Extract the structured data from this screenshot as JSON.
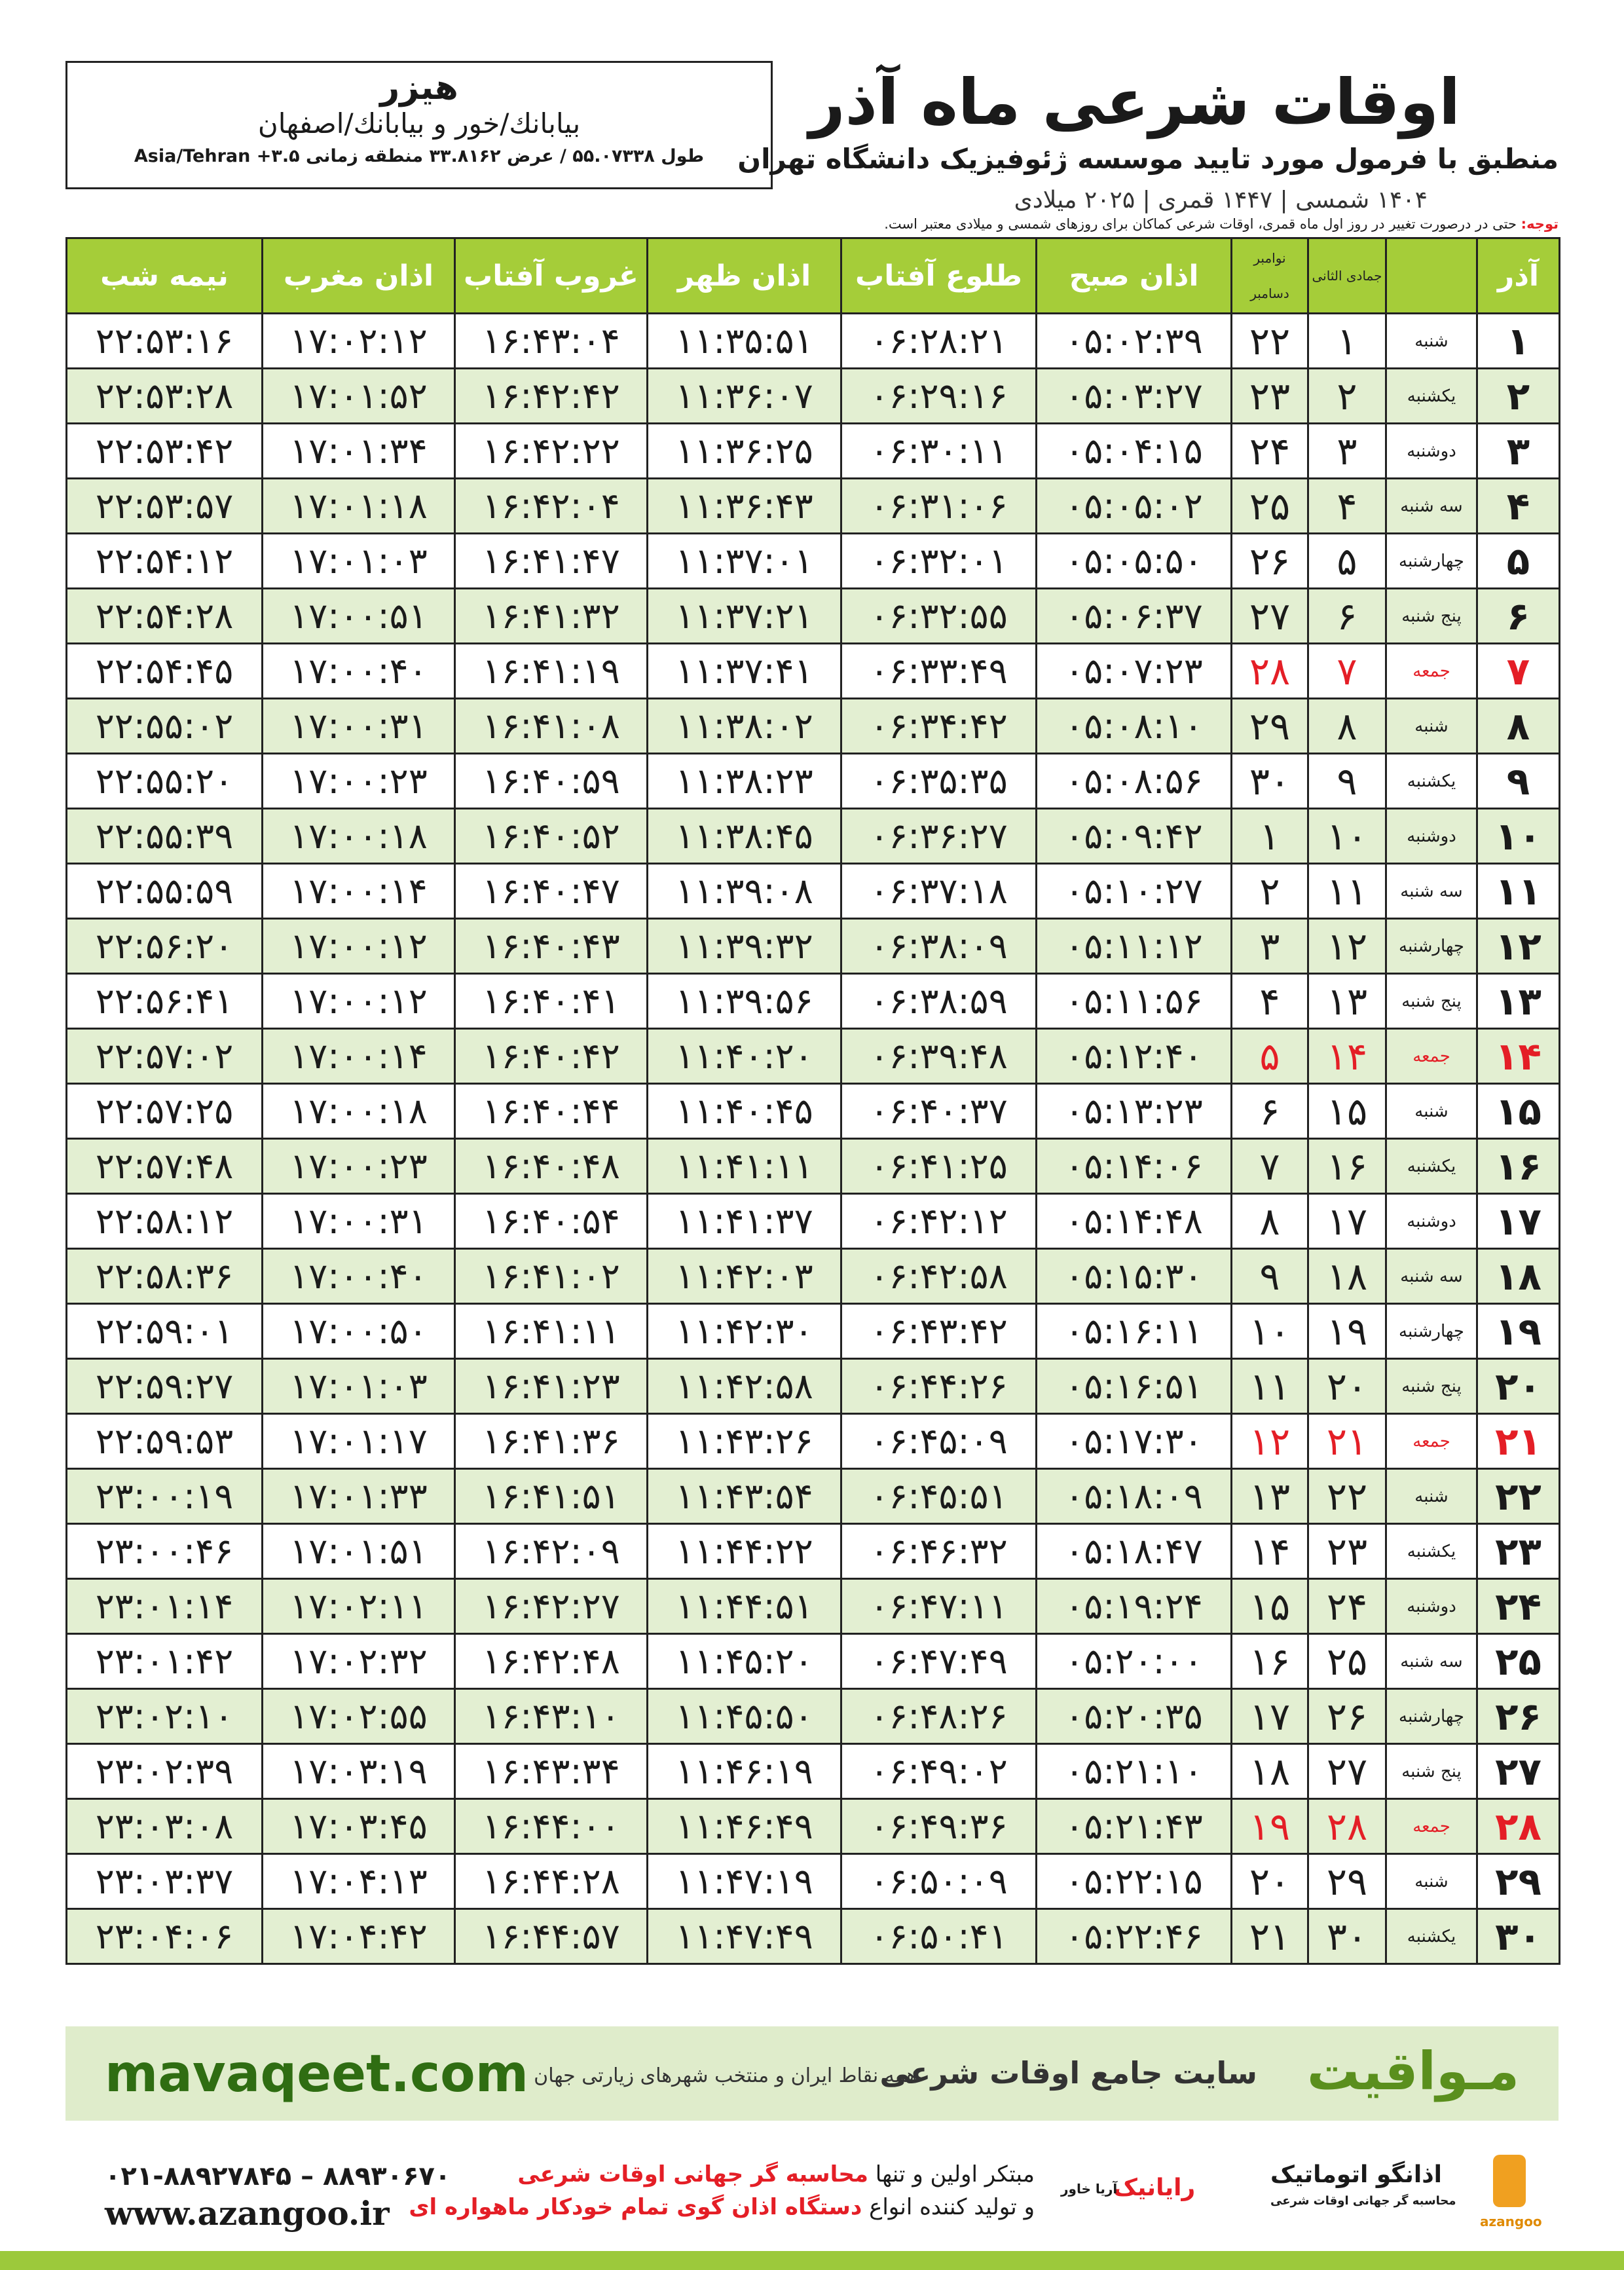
{
  "header": {
    "title": "اوقات شرعی ماه آذر",
    "subtitle": "منطبق با فرمول مورد تایید موسسه ژئوفیزیک دانشگاه تهران",
    "dates": "۱۴۰۴ شمسی | ۱۴۴۷ قمری | ۲۰۲۵ میلادی"
  },
  "city": {
    "name": "هیزر",
    "path": "بیابانك/خور و بیابانك/اصفهان",
    "coords": "طول ۵۵.۰۷۳۳۸ / عرض ۳۳.۸۱۶۲ منطقه زمانی ۳.۵+ Asia/Tehran"
  },
  "note": {
    "label": "توجه:",
    "text": "حتی در درصورت تغییر در روز اول ماه قمری، اوقات شرعی کماکان برای روزهای شمسی و میلادی معتبر است."
  },
  "table": {
    "header": {
      "azar": "آذر",
      "hijri": "جمادی الثانی",
      "greg_top": "نوامبر",
      "greg_bottom": "دسامبر",
      "columns": [
        "اذان صبح",
        "طلوع آفتاب",
        "اذان ظهر",
        "غروب آفتاب",
        "اذان مغرب",
        "نیمه شب"
      ]
    },
    "rows": [
      {
        "cells": [
          "۱",
          "شنبه",
          "۱",
          "۲۲",
          "۰۵:۰۲:۳۹",
          "۰۶:۲۸:۲۱",
          "۱۱:۳۵:۵۱",
          "۱۶:۴۳:۰۴",
          "۱۷:۰۲:۱۲",
          "۲۲:۵۳:۱۶"
        ]
      },
      {
        "cells": [
          "۲",
          "یکشنبه",
          "۲",
          "۲۳",
          "۰۵:۰۳:۲۷",
          "۰۶:۲۹:۱۶",
          "۱۱:۳۶:۰۷",
          "۱۶:۴۲:۴۲",
          "۱۷:۰۱:۵۲",
          "۲۲:۵۳:۲۸"
        ]
      },
      {
        "cells": [
          "۳",
          "دوشنبه",
          "۳",
          "۲۴",
          "۰۵:۰۴:۱۵",
          "۰۶:۳۰:۱۱",
          "۱۱:۳۶:۲۵",
          "۱۶:۴۲:۲۲",
          "۱۷:۰۱:۳۴",
          "۲۲:۵۳:۴۲"
        ]
      },
      {
        "cells": [
          "۴",
          "سه شنبه",
          "۴",
          "۲۵",
          "۰۵:۰۵:۰۲",
          "۰۶:۳۱:۰۶",
          "۱۱:۳۶:۴۳",
          "۱۶:۴۲:۰۴",
          "۱۷:۰۱:۱۸",
          "۲۲:۵۳:۵۷"
        ]
      },
      {
        "cells": [
          "۵",
          "چهارشنبه",
          "۵",
          "۲۶",
          "۰۵:۰۵:۵۰",
          "۰۶:۳۲:۰۱",
          "۱۱:۳۷:۰۱",
          "۱۶:۴۱:۴۷",
          "۱۷:۰۱:۰۳",
          "۲۲:۵۴:۱۲"
        ]
      },
      {
        "cells": [
          "۶",
          "پنج شنبه",
          "۶",
          "۲۷",
          "۰۵:۰۶:۳۷",
          "۰۶:۳۲:۵۵",
          "۱۱:۳۷:۲۱",
          "۱۶:۴۱:۳۲",
          "۱۷:۰۰:۵۱",
          "۲۲:۵۴:۲۸"
        ]
      },
      {
        "cells": [
          "۷",
          "جمعه",
          "۷",
          "۲۸",
          "۰۵:۰۷:۲۳",
          "۰۶:۳۳:۴۹",
          "۱۱:۳۷:۴۱",
          "۱۶:۴۱:۱۹",
          "۱۷:۰۰:۴۰",
          "۲۲:۵۴:۴۵"
        ],
        "color": "#e41e26"
      },
      {
        "cells": [
          "۸",
          "شنبه",
          "۸",
          "۲۹",
          "۰۵:۰۸:۱۰",
          "۰۶:۳۴:۴۲",
          "۱۱:۳۸:۰۲",
          "۱۶:۴۱:۰۸",
          "۱۷:۰۰:۳۱",
          "۲۲:۵۵:۰۲"
        ]
      },
      {
        "cells": [
          "۹",
          "یکشنبه",
          "۹",
          "۳۰",
          "۰۵:۰۸:۵۶",
          "۰۶:۳۵:۳۵",
          "۱۱:۳۸:۲۳",
          "۱۶:۴۰:۵۹",
          "۱۷:۰۰:۲۳",
          "۲۲:۵۵:۲۰"
        ]
      },
      {
        "cells": [
          "۱۰",
          "دوشنبه",
          "۱۰",
          "۱",
          "۰۵:۰۹:۴۲",
          "۰۶:۳۶:۲۷",
          "۱۱:۳۸:۴۵",
          "۱۶:۴۰:۵۲",
          "۱۷:۰۰:۱۸",
          "۲۲:۵۵:۳۹"
        ]
      },
      {
        "cells": [
          "۱۱",
          "سه شنبه",
          "۱۱",
          "۲",
          "۰۵:۱۰:۲۷",
          "۰۶:۳۷:۱۸",
          "۱۱:۳۹:۰۸",
          "۱۶:۴۰:۴۷",
          "۱۷:۰۰:۱۴",
          "۲۲:۵۵:۵۹"
        ]
      },
      {
        "cells": [
          "۱۲",
          "چهارشنبه",
          "۱۲",
          "۳",
          "۰۵:۱۱:۱۲",
          "۰۶:۳۸:۰۹",
          "۱۱:۳۹:۳۲",
          "۱۶:۴۰:۴۳",
          "۱۷:۰۰:۱۲",
          "۲۲:۵۶:۲۰"
        ]
      },
      {
        "cells": [
          "۱۳",
          "پنج شنبه",
          "۱۳",
          "۴",
          "۰۵:۱۱:۵۶",
          "۰۶:۳۸:۵۹",
          "۱۱:۳۹:۵۶",
          "۱۶:۴۰:۴۱",
          "۱۷:۰۰:۱۲",
          "۲۲:۵۶:۴۱"
        ]
      },
      {
        "cells": [
          "۱۴",
          "جمعه",
          "۱۴",
          "۵",
          "۰۵:۱۲:۴۰",
          "۰۶:۳۹:۴۸",
          "۱۱:۴۰:۲۰",
          "۱۶:۴۰:۴۲",
          "۱۷:۰۰:۱۴",
          "۲۲:۵۷:۰۲"
        ],
        "color": "#e41e26"
      },
      {
        "cells": [
          "۱۵",
          "شنبه",
          "۱۵",
          "۶",
          "۰۵:۱۳:۲۳",
          "۰۶:۴۰:۳۷",
          "۱۱:۴۰:۴۵",
          "۱۶:۴۰:۴۴",
          "۱۷:۰۰:۱۸",
          "۲۲:۵۷:۲۵"
        ]
      },
      {
        "cells": [
          "۱۶",
          "یکشنبه",
          "۱۶",
          "۷",
          "۰۵:۱۴:۰۶",
          "۰۶:۴۱:۲۵",
          "۱۱:۴۱:۱۱",
          "۱۶:۴۰:۴۸",
          "۱۷:۰۰:۲۳",
          "۲۲:۵۷:۴۸"
        ]
      },
      {
        "cells": [
          "۱۷",
          "دوشنبه",
          "۱۷",
          "۸",
          "۰۵:۱۴:۴۸",
          "۰۶:۴۲:۱۲",
          "۱۱:۴۱:۳۷",
          "۱۶:۴۰:۵۴",
          "۱۷:۰۰:۳۱",
          "۲۲:۵۸:۱۲"
        ]
      },
      {
        "cells": [
          "۱۸",
          "سه شنبه",
          "۱۸",
          "۹",
          "۰۵:۱۵:۳۰",
          "۰۶:۴۲:۵۸",
          "۱۱:۴۲:۰۳",
          "۱۶:۴۱:۰۲",
          "۱۷:۰۰:۴۰",
          "۲۲:۵۸:۳۶"
        ]
      },
      {
        "cells": [
          "۱۹",
          "چهارشنبه",
          "۱۹",
          "۱۰",
          "۰۵:۱۶:۱۱",
          "۰۶:۴۳:۴۲",
          "۱۱:۴۲:۳۰",
          "۱۶:۴۱:۱۱",
          "۱۷:۰۰:۵۰",
          "۲۲:۵۹:۰۱"
        ]
      },
      {
        "cells": [
          "۲۰",
          "پنج شنبه",
          "۲۰",
          "۱۱",
          "۰۵:۱۶:۵۱",
          "۰۶:۴۴:۲۶",
          "۱۱:۴۲:۵۸",
          "۱۶:۴۱:۲۳",
          "۱۷:۰۱:۰۳",
          "۲۲:۵۹:۲۷"
        ]
      },
      {
        "cells": [
          "۲۱",
          "جمعه",
          "۲۱",
          "۱۲",
          "۰۵:۱۷:۳۰",
          "۰۶:۴۵:۰۹",
          "۱۱:۴۳:۲۶",
          "۱۶:۴۱:۳۶",
          "۱۷:۰۱:۱۷",
          "۲۲:۵۹:۵۳"
        ],
        "color": "#e41e26"
      },
      {
        "cells": [
          "۲۲",
          "شنبه",
          "۲۲",
          "۱۳",
          "۰۵:۱۸:۰۹",
          "۰۶:۴۵:۵۱",
          "۱۱:۴۳:۵۴",
          "۱۶:۴۱:۵۱",
          "۱۷:۰۱:۳۳",
          "۲۳:۰۰:۱۹"
        ]
      },
      {
        "cells": [
          "۲۳",
          "یکشنبه",
          "۲۳",
          "۱۴",
          "۰۵:۱۸:۴۷",
          "۰۶:۴۶:۳۲",
          "۱۱:۴۴:۲۲",
          "۱۶:۴۲:۰۹",
          "۱۷:۰۱:۵۱",
          "۲۳:۰۰:۴۶"
        ]
      },
      {
        "cells": [
          "۲۴",
          "دوشنبه",
          "۲۴",
          "۱۵",
          "۰۵:۱۹:۲۴",
          "۰۶:۴۷:۱۱",
          "۱۱:۴۴:۵۱",
          "۱۶:۴۲:۲۷",
          "۱۷:۰۲:۱۱",
          "۲۳:۰۱:۱۴"
        ]
      },
      {
        "cells": [
          "۲۵",
          "سه شنبه",
          "۲۵",
          "۱۶",
          "۰۵:۲۰:۰۰",
          "۰۶:۴۷:۴۹",
          "۱۱:۴۵:۲۰",
          "۱۶:۴۲:۴۸",
          "۱۷:۰۲:۳۲",
          "۲۳:۰۱:۴۲"
        ]
      },
      {
        "cells": [
          "۲۶",
          "چهارشنبه",
          "۲۶",
          "۱۷",
          "۰۵:۲۰:۳۵",
          "۰۶:۴۸:۲۶",
          "۱۱:۴۵:۵۰",
          "۱۶:۴۳:۱۰",
          "۱۷:۰۲:۵۵",
          "۲۳:۰۲:۱۰"
        ]
      },
      {
        "cells": [
          "۲۷",
          "پنج شنبه",
          "۲۷",
          "۱۸",
          "۰۵:۲۱:۱۰",
          "۰۶:۴۹:۰۲",
          "۱۱:۴۶:۱۹",
          "۱۶:۴۳:۳۴",
          "۱۷:۰۳:۱۹",
          "۲۳:۰۲:۳۹"
        ]
      },
      {
        "cells": [
          "۲۸",
          "جمعه",
          "۲۸",
          "۱۹",
          "۰۵:۲۱:۴۳",
          "۰۶:۴۹:۳۶",
          "۱۱:۴۶:۴۹",
          "۱۶:۴۴:۰۰",
          "۱۷:۰۳:۴۵",
          "۲۳:۰۳:۰۸"
        ],
        "color": "#e41e26"
      },
      {
        "cells": [
          "۲۹",
          "شنبه",
          "۲۹",
          "۲۰",
          "۰۵:۲۲:۱۵",
          "۰۶:۵۰:۰۹",
          "۱۱:۴۷:۱۹",
          "۱۶:۴۴:۲۸",
          "۱۷:۰۴:۱۳",
          "۲۳:۰۳:۳۷"
        ]
      },
      {
        "cells": [
          "۳۰",
          "یکشنبه",
          "۳۰",
          "۲۱",
          "۰۵:۲۲:۴۶",
          "۰۶:۵۰:۴۱",
          "۱۱:۴۷:۴۹",
          "۱۶:۴۴:۵۷",
          "۱۷:۰۴:۴۲",
          "۲۳:۰۴:۰۶"
        ]
      }
    ]
  },
  "banner": {
    "brand": "مـواقیت",
    "site": "سایت جامع اوقات شرعی",
    "sub": "همه نقاط ایران و منتخب شهرهای زیارتی جهان",
    "url": "mavaqeet.com"
  },
  "footer": {
    "phone": "۰۲۱-۸۸۹۲۷۸۴۵ – ۸۸۹۳۰۶۷۰",
    "web": "www.azangoo.ir",
    "line1_a": "مبتکر اولین و تنها",
    "line1_b": "محاسبه گر جهانی اوقات شرعی",
    "line2_a": "و تولید کننده انواع",
    "line2_b": "دستگاه اذان گوی تمام خودکار ماهواره ای",
    "logo_raianik": "رایانیک",
    "logo_aria": "آریا خاور",
    "logo_azangoo": "اذانگو اتوماتیک",
    "logo_azangoo_sub": "محاسبه گر جهانی اوقات شرعی",
    "logo_azangoo_en": "azangoo"
  }
}
